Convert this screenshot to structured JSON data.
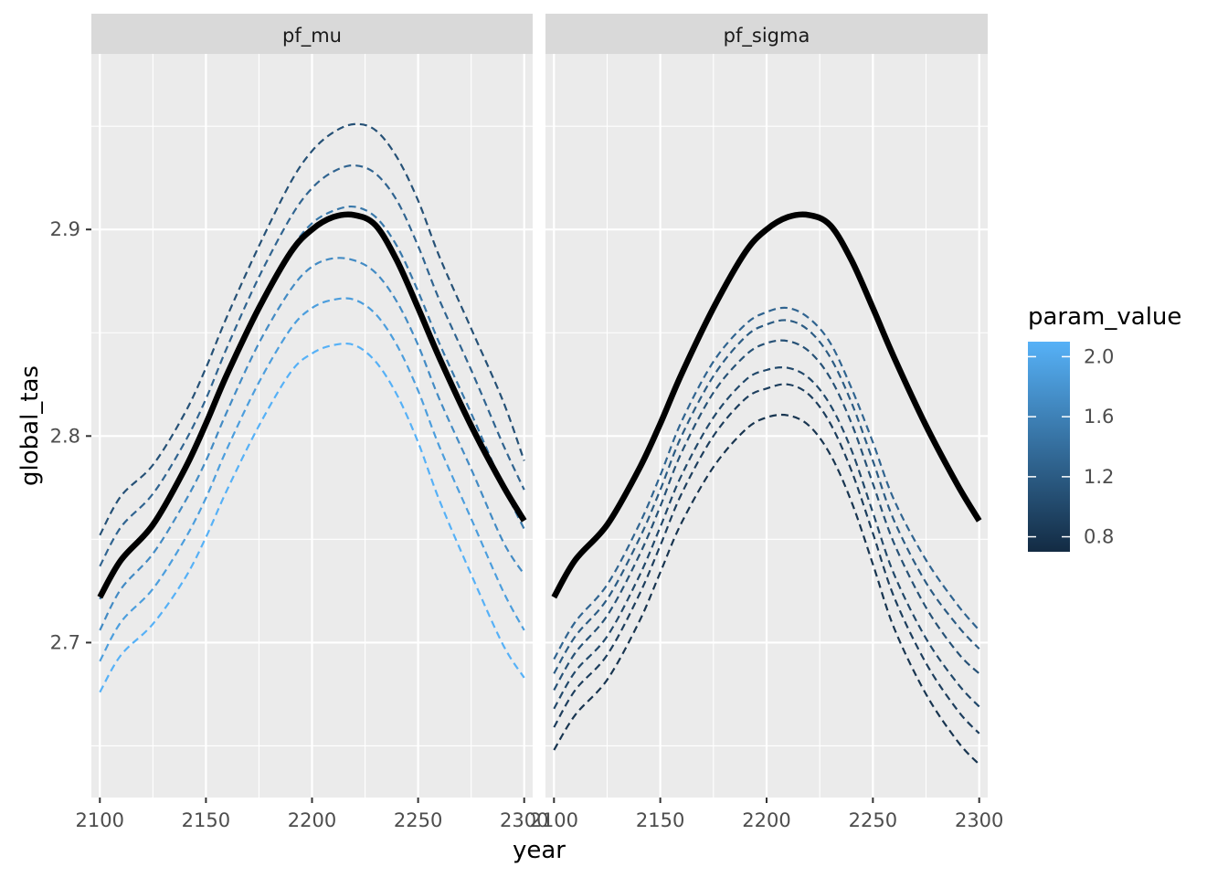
{
  "chart_data": {
    "type": "line",
    "xlabel": "year",
    "ylabel": "global_tas",
    "xlim": [
      2096,
      2304
    ],
    "ylim": [
      2.625,
      2.985
    ],
    "x_ticks": [
      2100,
      2150,
      2200,
      2250,
      2300
    ],
    "x_tick_labels": [
      "2100",
      "2150",
      "2200",
      "2250",
      "2300"
    ],
    "y_ticks": [
      2.7,
      2.8,
      2.9
    ],
    "y_tick_labels": [
      "2.7",
      "2.8",
      "2.9"
    ],
    "grid": true,
    "legend": {
      "title": "param_value",
      "type": "colorbar",
      "position": "right",
      "range": [
        0.7,
        2.1
      ],
      "breaks": [
        0.8,
        1.2,
        1.6,
        2.0
      ],
      "break_labels": [
        "0.8",
        "1.2",
        "1.6",
        "2.0"
      ],
      "low_color": "#132B43",
      "high_color": "#56B1F7"
    },
    "panels": [
      {
        "strip": "pf_mu",
        "baseline": {
          "x": [
            2100,
            2110,
            2125,
            2140,
            2150,
            2160,
            2175,
            2190,
            2200,
            2210,
            2220,
            2230,
            2240,
            2250,
            2260,
            2275,
            2290,
            2300
          ],
          "y": [
            2.722,
            2.74,
            2.757,
            2.784,
            2.806,
            2.83,
            2.862,
            2.889,
            2.9,
            2.906,
            2.907,
            2.902,
            2.885,
            2.862,
            2.838,
            2.805,
            2.776,
            2.759
          ]
        },
        "series": [
          {
            "param_value": 1.1,
            "y": [
              2.752,
              2.771,
              2.786,
              2.811,
              2.833,
              2.858,
              2.892,
              2.923,
              2.938,
              2.947,
              2.951,
              2.948,
              2.935,
              2.914,
              2.887,
              2.852,
              2.817,
              2.788
            ]
          },
          {
            "param_value": 1.3,
            "y": [
              2.737,
              2.756,
              2.772,
              2.797,
              2.818,
              2.843,
              2.877,
              2.906,
              2.92,
              2.928,
              2.931,
              2.927,
              2.914,
              2.892,
              2.866,
              2.832,
              2.796,
              2.774
            ]
          },
          {
            "param_value": 1.5,
            "y": [
              2.721,
              2.741,
              2.758,
              2.783,
              2.804,
              2.828,
              2.861,
              2.89,
              2.903,
              2.909,
              2.911,
              2.906,
              2.892,
              2.87,
              2.845,
              2.811,
              2.776,
              2.755
            ]
          },
          {
            "param_value": 1.7,
            "y": [
              2.706,
              2.726,
              2.743,
              2.768,
              2.788,
              2.812,
              2.845,
              2.871,
              2.882,
              2.886,
              2.885,
              2.879,
              2.865,
              2.844,
              2.818,
              2.784,
              2.749,
              2.733
            ]
          },
          {
            "param_value": 1.9,
            "y": [
              2.691,
              2.71,
              2.726,
              2.75,
              2.77,
              2.794,
              2.826,
              2.852,
              2.862,
              2.866,
              2.866,
              2.859,
              2.844,
              2.822,
              2.795,
              2.76,
              2.725,
              2.706
            ]
          },
          {
            "param_value": 2.1,
            "y": [
              2.676,
              2.694,
              2.709,
              2.731,
              2.751,
              2.774,
              2.805,
              2.831,
              2.84,
              2.844,
              2.844,
              2.836,
              2.82,
              2.797,
              2.769,
              2.733,
              2.699,
              2.683
            ]
          }
        ]
      },
      {
        "strip": "pf_sigma",
        "baseline": {
          "x": [
            2100,
            2110,
            2125,
            2140,
            2150,
            2160,
            2175,
            2190,
            2200,
            2210,
            2220,
            2230,
            2240,
            2250,
            2260,
            2275,
            2290,
            2300
          ],
          "y": [
            2.722,
            2.74,
            2.757,
            2.784,
            2.806,
            2.83,
            2.862,
            2.889,
            2.9,
            2.906,
            2.907,
            2.902,
            2.885,
            2.862,
            2.838,
            2.805,
            2.776,
            2.759
          ]
        },
        "series": [
          {
            "param_value": 1.3,
            "y": [
              2.692,
              2.71,
              2.728,
              2.757,
              2.781,
              2.807,
              2.836,
              2.854,
              2.86,
              2.862,
              2.857,
              2.845,
              2.823,
              2.797,
              2.769,
              2.74,
              2.718,
              2.706
            ]
          },
          {
            "param_value": 1.2,
            "y": [
              2.685,
              2.703,
              2.721,
              2.75,
              2.774,
              2.8,
              2.829,
              2.848,
              2.854,
              2.856,
              2.851,
              2.838,
              2.816,
              2.788,
              2.759,
              2.729,
              2.708,
              2.697
            ]
          },
          {
            "param_value": 1.1,
            "y": [
              2.677,
              2.695,
              2.713,
              2.742,
              2.766,
              2.792,
              2.821,
              2.839,
              2.845,
              2.846,
              2.841,
              2.828,
              2.806,
              2.777,
              2.748,
              2.717,
              2.695,
              2.685
            ]
          },
          {
            "param_value": 1.0,
            "y": [
              2.668,
              2.686,
              2.703,
              2.732,
              2.756,
              2.781,
              2.809,
              2.827,
              2.832,
              2.833,
              2.828,
              2.815,
              2.793,
              2.763,
              2.733,
              2.702,
              2.68,
              2.669
            ]
          },
          {
            "param_value": 0.9,
            "y": [
              2.659,
              2.677,
              2.694,
              2.723,
              2.747,
              2.772,
              2.8,
              2.818,
              2.823,
              2.825,
              2.82,
              2.806,
              2.783,
              2.753,
              2.722,
              2.69,
              2.667,
              2.656
            ]
          },
          {
            "param_value": 0.8,
            "y": [
              2.648,
              2.665,
              2.682,
              2.71,
              2.734,
              2.758,
              2.785,
              2.803,
              2.809,
              2.81,
              2.805,
              2.791,
              2.768,
              2.738,
              2.707,
              2.675,
              2.652,
              2.641
            ]
          }
        ]
      }
    ]
  }
}
